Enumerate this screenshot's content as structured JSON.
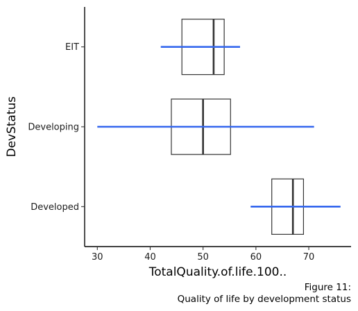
{
  "chart_data": {
    "type": "boxplot",
    "title": "",
    "xlabel": "TotalQuality.of.life.100..",
    "ylabel": "DevStatus",
    "xlim": [
      27.6,
      78.0
    ],
    "x_ticks": [
      30,
      40,
      50,
      60,
      70
    ],
    "categories": [
      "EIT",
      "Developing",
      "Developed"
    ],
    "boxes": [
      {
        "category": "EIT",
        "q1": 46.0,
        "median": 52.0,
        "q3": 54.0,
        "range_min": 42.0,
        "range_max": 57.0
      },
      {
        "category": "Developing",
        "q1": 44.0,
        "median": 50.0,
        "q3": 55.2,
        "range_min": 30.0,
        "range_max": 71.0
      },
      {
        "category": "Developed",
        "q1": 63.0,
        "median": 67.0,
        "q3": 69.0,
        "range_min": 59.0,
        "range_max": 76.0
      }
    ],
    "colors": {
      "box": "#333333",
      "range_line": "#3366ee",
      "axis": "#000000"
    },
    "grid": false,
    "legend": "none"
  },
  "caption": {
    "line1": "Figure 11:",
    "line2": "Quality of life by development status"
  }
}
